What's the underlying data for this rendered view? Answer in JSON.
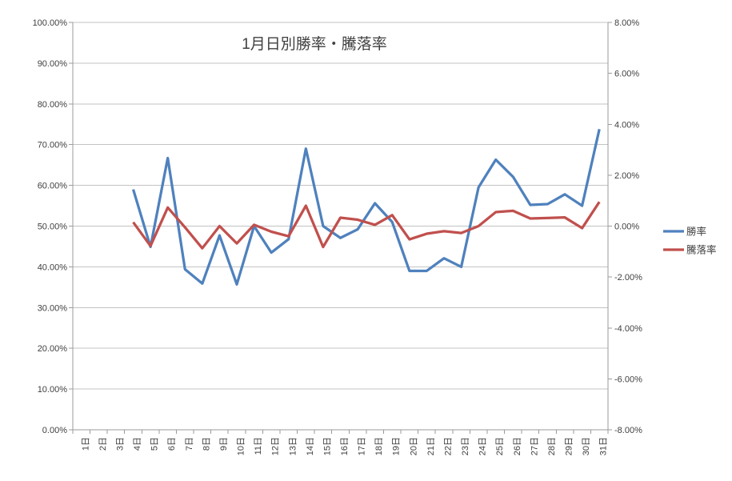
{
  "chart_data": {
    "type": "line",
    "title": "1月日別勝率・騰落率",
    "categories": [
      "1日",
      "2日",
      "3日",
      "4日",
      "5日",
      "6日",
      "7日",
      "8日",
      "9日",
      "10日",
      "11日",
      "12日",
      "13日",
      "14日",
      "15日",
      "16日",
      "17日",
      "18日",
      "19日",
      "20日",
      "21日",
      "22日",
      "23日",
      "24日",
      "25日",
      "26日",
      "27日",
      "28日",
      "29日",
      "30日",
      "31日"
    ],
    "series": [
      {
        "name": "勝率",
        "axis": "left",
        "unit": "%",
        "color": "#4F81BD",
        "values": [
          null,
          null,
          null,
          59.0,
          44.9,
          66.7,
          39.4,
          35.9,
          47.7,
          35.7,
          50.0,
          43.5,
          46.8,
          69.0,
          50.0,
          47.1,
          49.2,
          55.6,
          51.0,
          39.0,
          39.0,
          42.1,
          40.0,
          59.5,
          66.3,
          62.1,
          55.2,
          55.4,
          57.8,
          55.0,
          73.8
        ]
      },
      {
        "name": "騰落率",
        "axis": "right",
        "unit": "%",
        "color": "#C0504D",
        "values": [
          null,
          null,
          null,
          0.15,
          -0.78,
          0.73,
          -0.05,
          -0.87,
          0.0,
          -0.68,
          0.05,
          -0.22,
          -0.4,
          0.8,
          -0.82,
          0.33,
          0.25,
          0.05,
          0.43,
          -0.52,
          -0.3,
          -0.2,
          -0.27,
          0.0,
          0.55,
          0.6,
          0.3,
          0.32,
          0.34,
          -0.08,
          0.95
        ]
      }
    ],
    "left_axis": {
      "min": 0,
      "max": 100,
      "step": 10,
      "tick_labels": [
        "100.00%",
        "90.00%",
        "80.00%",
        "70.00%",
        "60.00%",
        "50.00%",
        "40.00%",
        "30.00%",
        "20.00%",
        "10.00%",
        "0.00%"
      ]
    },
    "right_axis": {
      "min": -8,
      "max": 8,
      "step": 2,
      "tick_labels": [
        "8.00%",
        "6.00%",
        "4.00%",
        "2.00%",
        "0.00%",
        "-2.00%",
        "-4.00%",
        "-6.00%",
        "-8.00%"
      ]
    },
    "grid": "horizontal",
    "legend_position": "right",
    "colors": {
      "gridline": "#C3C3C3",
      "axis": "#9B9B9B",
      "text": "#404040",
      "background": "#FFFFFF"
    }
  }
}
